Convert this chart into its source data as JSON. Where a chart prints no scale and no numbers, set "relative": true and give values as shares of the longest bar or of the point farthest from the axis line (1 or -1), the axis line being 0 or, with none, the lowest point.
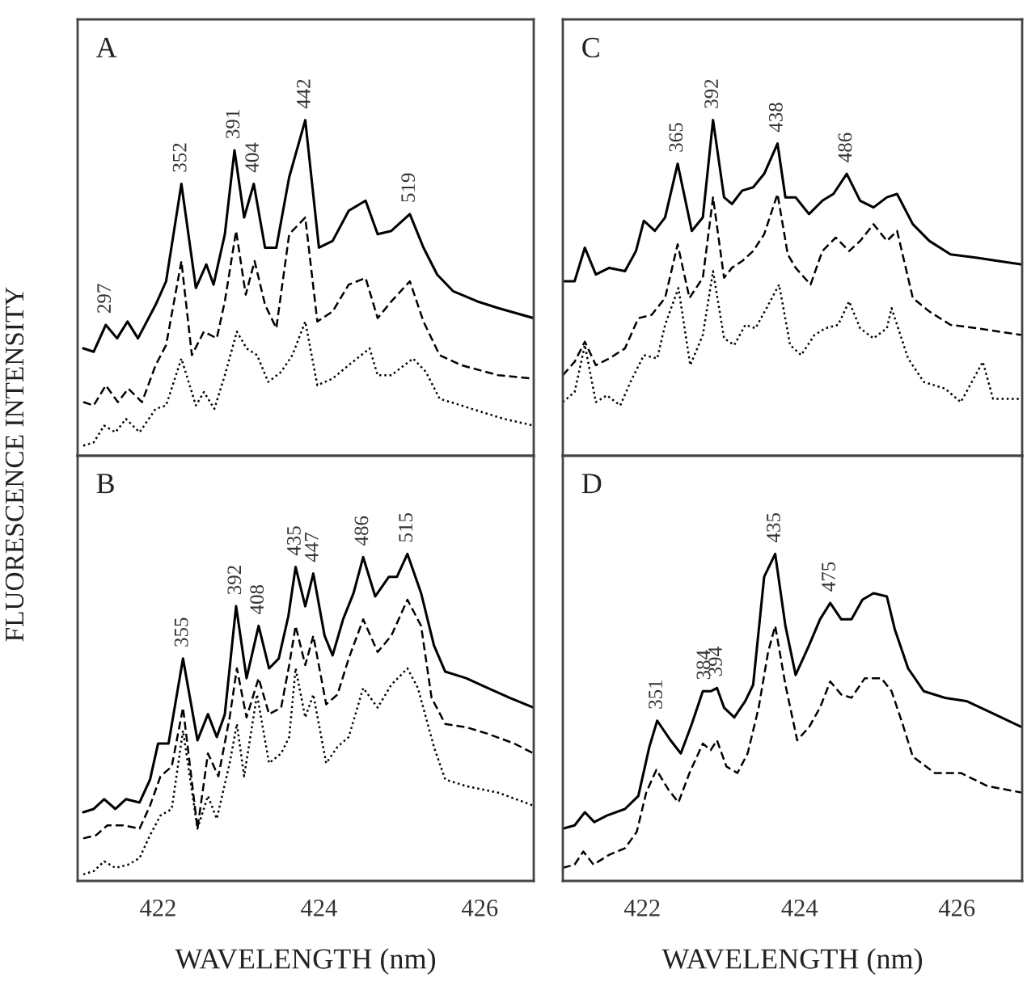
{
  "chart_data": [
    {
      "type": "line",
      "relative": true,
      "xlim": [
        421.0,
        426.67
      ],
      "xticks": [
        422,
        424,
        426
      ],
      "tick_labels": false,
      "annotations": [
        "A",
        {
          "text": "297",
          "x": 421.35,
          "y": 0.39
        },
        {
          "text": "352",
          "x": 422.29,
          "y": 0.81
        },
        {
          "text": "391",
          "x": 422.95,
          "y": 0.91
        },
        {
          "text": "404",
          "x": 423.19,
          "y": 0.81
        },
        {
          "text": "442",
          "x": 423.83,
          "y": 1.0
        },
        {
          "text": "519",
          "x": 425.13,
          "y": 0.72
        }
      ],
      "series": [
        {
          "color": "#000000",
          "line_style": "solid",
          "x": [
            421.07,
            421.2,
            421.35,
            421.49,
            421.62,
            421.75,
            421.97,
            422.1,
            422.29,
            422.47,
            422.6,
            422.69,
            422.83,
            422.95,
            423.07,
            423.19,
            423.33,
            423.47,
            423.63,
            423.83,
            424.0,
            424.17,
            424.37,
            424.58,
            424.73,
            424.9,
            425.13,
            425.3,
            425.47,
            425.67,
            425.97,
            426.23,
            426.67
          ],
          "values": [
            0.32,
            0.31,
            0.39,
            0.35,
            0.4,
            0.35,
            0.45,
            0.52,
            0.81,
            0.5,
            0.57,
            0.51,
            0.66,
            0.91,
            0.71,
            0.81,
            0.62,
            0.62,
            0.83,
            1.0,
            0.62,
            0.64,
            0.73,
            0.76,
            0.66,
            0.67,
            0.72,
            0.62,
            0.54,
            0.49,
            0.46,
            0.44,
            0.41
          ]
        },
        {
          "color": "#000000",
          "line_style": "dashed",
          "x": [
            421.07,
            421.2,
            421.35,
            421.5,
            421.63,
            421.8,
            421.97,
            422.1,
            422.29,
            422.42,
            422.57,
            422.73,
            422.83,
            422.97,
            423.09,
            423.2,
            423.33,
            423.47,
            423.63,
            423.83,
            423.98,
            424.17,
            424.37,
            424.58,
            424.73,
            424.9,
            425.13,
            425.3,
            425.5,
            425.77,
            426.23,
            426.67
          ],
          "values": [
            0.16,
            0.15,
            0.21,
            0.16,
            0.2,
            0.16,
            0.27,
            0.33,
            0.58,
            0.3,
            0.37,
            0.35,
            0.46,
            0.67,
            0.48,
            0.58,
            0.45,
            0.38,
            0.66,
            0.71,
            0.4,
            0.43,
            0.51,
            0.53,
            0.41,
            0.46,
            0.52,
            0.4,
            0.3,
            0.27,
            0.24,
            0.23
          ]
        },
        {
          "color": "#000000",
          "line_style": "dotted",
          "x": [
            421.07,
            421.2,
            421.33,
            421.47,
            421.6,
            421.77,
            421.97,
            422.1,
            422.29,
            422.47,
            422.57,
            422.7,
            422.83,
            422.98,
            423.1,
            423.23,
            423.37,
            423.53,
            423.67,
            423.83,
            423.98,
            424.17,
            424.37,
            424.63,
            424.73,
            424.9,
            425.17,
            425.33,
            425.5,
            425.77,
            426.03,
            426.3,
            426.67
          ],
          "values": [
            0.03,
            0.04,
            0.09,
            0.07,
            0.11,
            0.07,
            0.14,
            0.15,
            0.29,
            0.15,
            0.19,
            0.14,
            0.24,
            0.37,
            0.32,
            0.3,
            0.22,
            0.25,
            0.3,
            0.4,
            0.21,
            0.23,
            0.27,
            0.32,
            0.24,
            0.24,
            0.29,
            0.25,
            0.17,
            0.15,
            0.13,
            0.11,
            0.09
          ]
        }
      ]
    },
    {
      "type": "line",
      "relative": true,
      "ylabel": "FLUORESCENCE INTENSITY",
      "xlabel": "WAVELENGTH (nm)",
      "xlim": [
        421.0,
        426.67
      ],
      "xticks": [
        422,
        424,
        426
      ],
      "tick_labels": "x",
      "annotations": [
        "B",
        {
          "text": "355",
          "x": 422.31,
          "y": 0.68
        },
        {
          "text": "392",
          "x": 422.97,
          "y": 0.84
        },
        {
          "text": "408",
          "x": 423.25,
          "y": 0.78
        },
        {
          "text": "435",
          "x": 423.71,
          "y": 0.96
        },
        {
          "text": "447",
          "x": 423.93,
          "y": 0.94
        },
        {
          "text": "486",
          "x": 424.55,
          "y": 0.99
        },
        {
          "text": "515",
          "x": 425.1,
          "y": 1.0
        }
      ],
      "series": [
        {
          "color": "#000000",
          "line_style": "solid",
          "x": [
            421.07,
            421.2,
            421.33,
            421.47,
            421.6,
            421.77,
            421.9,
            422.0,
            422.13,
            422.31,
            422.49,
            422.62,
            422.73,
            422.83,
            422.97,
            423.1,
            423.25,
            423.38,
            423.5,
            423.62,
            423.71,
            423.83,
            423.93,
            424.07,
            424.17,
            424.3,
            424.43,
            424.55,
            424.7,
            424.87,
            424.97,
            425.1,
            425.27,
            425.43,
            425.57,
            425.83,
            426.1,
            426.37,
            426.67
          ],
          "values": [
            0.21,
            0.22,
            0.25,
            0.22,
            0.25,
            0.24,
            0.31,
            0.42,
            0.42,
            0.68,
            0.43,
            0.51,
            0.44,
            0.51,
            0.84,
            0.62,
            0.78,
            0.65,
            0.68,
            0.81,
            0.96,
            0.84,
            0.94,
            0.75,
            0.69,
            0.8,
            0.88,
            0.99,
            0.87,
            0.93,
            0.93,
            1.0,
            0.88,
            0.72,
            0.64,
            0.62,
            0.59,
            0.56,
            0.53
          ]
        },
        {
          "color": "#000000",
          "line_style": "dashed",
          "x": [
            421.07,
            421.23,
            421.37,
            421.57,
            421.77,
            421.9,
            422.03,
            422.17,
            422.31,
            422.49,
            422.62,
            422.75,
            422.89,
            422.98,
            423.1,
            423.25,
            423.38,
            423.53,
            423.63,
            423.71,
            423.83,
            423.93,
            424.09,
            424.23,
            424.37,
            424.55,
            424.73,
            424.9,
            425.1,
            425.27,
            425.4,
            425.57,
            425.83,
            426.1,
            426.43,
            426.67
          ],
          "values": [
            0.13,
            0.14,
            0.17,
            0.17,
            0.16,
            0.23,
            0.32,
            0.35,
            0.53,
            0.16,
            0.39,
            0.32,
            0.5,
            0.65,
            0.5,
            0.62,
            0.51,
            0.53,
            0.66,
            0.78,
            0.66,
            0.75,
            0.54,
            0.57,
            0.68,
            0.8,
            0.7,
            0.75,
            0.86,
            0.78,
            0.56,
            0.48,
            0.47,
            0.45,
            0.42,
            0.39
          ]
        },
        {
          "color": "#000000",
          "line_style": "dotted",
          "x": [
            421.07,
            421.2,
            421.33,
            421.47,
            421.63,
            421.77,
            421.9,
            422.03,
            422.17,
            422.31,
            422.49,
            422.62,
            422.73,
            422.89,
            422.98,
            423.07,
            423.23,
            423.38,
            423.53,
            423.63,
            423.71,
            423.83,
            423.93,
            424.09,
            424.23,
            424.37,
            424.55,
            424.73,
            424.9,
            425.1,
            425.23,
            425.43,
            425.57,
            425.83,
            426.23,
            426.67
          ],
          "values": [
            0.02,
            0.03,
            0.06,
            0.04,
            0.05,
            0.07,
            0.14,
            0.2,
            0.22,
            0.46,
            0.16,
            0.26,
            0.19,
            0.36,
            0.48,
            0.32,
            0.57,
            0.36,
            0.39,
            0.44,
            0.65,
            0.5,
            0.57,
            0.36,
            0.41,
            0.44,
            0.59,
            0.53,
            0.6,
            0.65,
            0.59,
            0.41,
            0.31,
            0.29,
            0.27,
            0.23
          ]
        }
      ]
    },
    {
      "type": "line",
      "relative": true,
      "xlim": [
        420.99,
        426.83
      ],
      "xticks": [
        422,
        424,
        426
      ],
      "tick_labels": false,
      "annotations": [
        "C",
        {
          "text": "365",
          "x": 422.45,
          "y": 0.87
        },
        {
          "text": "392",
          "x": 422.9,
          "y": 1.0
        },
        {
          "text": "438",
          "x": 423.72,
          "y": 0.93
        },
        {
          "text": "486",
          "x": 424.6,
          "y": 0.84
        }
      ],
      "series": [
        {
          "color": "#000000",
          "line_style": "solid",
          "x": [
            420.99,
            421.14,
            421.27,
            421.41,
            421.58,
            421.78,
            421.92,
            422.02,
            422.16,
            422.29,
            422.45,
            422.63,
            422.77,
            422.9,
            423.04,
            423.14,
            423.27,
            423.41,
            423.55,
            423.72,
            423.82,
            423.95,
            424.12,
            424.29,
            424.43,
            424.6,
            424.77,
            424.94,
            425.11,
            425.24,
            425.44,
            425.65,
            425.92,
            426.26,
            426.53,
            426.83
          ],
          "values": [
            0.52,
            0.52,
            0.62,
            0.54,
            0.56,
            0.55,
            0.61,
            0.7,
            0.67,
            0.71,
            0.87,
            0.67,
            0.71,
            1.0,
            0.77,
            0.75,
            0.79,
            0.8,
            0.84,
            0.93,
            0.77,
            0.77,
            0.72,
            0.76,
            0.78,
            0.84,
            0.76,
            0.74,
            0.77,
            0.78,
            0.69,
            0.64,
            0.6,
            0.59,
            0.58,
            0.57
          ]
        },
        {
          "color": "#000000",
          "line_style": "dashed",
          "x": [
            420.99,
            421.14,
            421.27,
            421.41,
            421.58,
            421.78,
            421.95,
            422.12,
            422.29,
            422.45,
            422.6,
            422.77,
            422.9,
            423.04,
            423.14,
            423.27,
            423.41,
            423.55,
            423.72,
            423.85,
            423.95,
            424.14,
            424.29,
            424.46,
            424.63,
            424.77,
            424.94,
            425.11,
            425.24,
            425.44,
            425.65,
            425.92,
            426.26,
            426.53,
            426.83
          ],
          "values": [
            0.24,
            0.28,
            0.34,
            0.27,
            0.29,
            0.32,
            0.41,
            0.42,
            0.47,
            0.63,
            0.47,
            0.53,
            0.77,
            0.53,
            0.56,
            0.58,
            0.61,
            0.66,
            0.78,
            0.6,
            0.56,
            0.51,
            0.61,
            0.65,
            0.61,
            0.64,
            0.69,
            0.64,
            0.67,
            0.47,
            0.43,
            0.39,
            0.38,
            0.37,
            0.36
          ]
        },
        {
          "color": "#000000",
          "line_style": "dotted",
          "x": [
            420.99,
            421.14,
            421.27,
            421.41,
            421.55,
            421.72,
            421.85,
            422.02,
            422.19,
            422.29,
            422.46,
            422.61,
            422.77,
            422.9,
            423.04,
            423.17,
            423.31,
            423.44,
            423.58,
            423.74,
            423.88,
            424.02,
            424.19,
            424.33,
            424.49,
            424.63,
            424.77,
            424.94,
            425.11,
            425.17,
            425.38,
            425.58,
            425.85,
            426.05,
            426.33,
            426.46,
            426.83
          ],
          "values": [
            0.16,
            0.19,
            0.33,
            0.16,
            0.18,
            0.15,
            0.22,
            0.3,
            0.29,
            0.39,
            0.5,
            0.27,
            0.36,
            0.55,
            0.35,
            0.33,
            0.39,
            0.38,
            0.44,
            0.51,
            0.33,
            0.3,
            0.36,
            0.38,
            0.39,
            0.46,
            0.38,
            0.35,
            0.38,
            0.44,
            0.29,
            0.22,
            0.2,
            0.16,
            0.28,
            0.17,
            0.17
          ]
        }
      ]
    },
    {
      "type": "line",
      "relative": true,
      "xlabel": "WAVELENGTH (nm)",
      "xlim": [
        420.99,
        426.83
      ],
      "xticks": [
        422,
        424,
        426
      ],
      "tick_labels": "x",
      "annotations": [
        "D",
        {
          "text": "351",
          "x": 422.19,
          "y": 0.49
        },
        {
          "text": "384",
          "x": 422.8,
          "y": 0.58
        },
        {
          "text": "394",
          "x": 422.95,
          "y": 0.59
        },
        {
          "text": "435",
          "x": 423.69,
          "y": 1.0
        },
        {
          "text": "475",
          "x": 424.39,
          "y": 0.85
        }
      ],
      "series": [
        {
          "color": "#000000",
          "line_style": "solid",
          "x": [
            420.99,
            421.14,
            421.27,
            421.39,
            421.55,
            421.78,
            421.95,
            422.09,
            422.19,
            422.36,
            422.49,
            422.63,
            422.77,
            422.87,
            422.95,
            423.04,
            423.17,
            423.31,
            423.41,
            423.55,
            423.69,
            423.82,
            423.95,
            424.12,
            424.26,
            424.39,
            424.53,
            424.66,
            424.8,
            424.94,
            425.11,
            425.21,
            425.38,
            425.58,
            425.85,
            426.12,
            426.39,
            426.83
          ],
          "values": [
            0.16,
            0.17,
            0.21,
            0.18,
            0.2,
            0.22,
            0.26,
            0.41,
            0.49,
            0.43,
            0.39,
            0.48,
            0.58,
            0.58,
            0.59,
            0.53,
            0.5,
            0.55,
            0.6,
            0.93,
            1.0,
            0.78,
            0.63,
            0.72,
            0.8,
            0.85,
            0.8,
            0.8,
            0.86,
            0.88,
            0.87,
            0.77,
            0.65,
            0.58,
            0.56,
            0.55,
            0.52,
            0.47
          ]
        },
        {
          "color": "#000000",
          "line_style": "dashed",
          "x": [
            420.99,
            421.14,
            421.25,
            421.38,
            421.58,
            421.78,
            421.93,
            422.05,
            422.18,
            422.33,
            422.46,
            422.6,
            422.77,
            422.87,
            422.95,
            423.07,
            423.21,
            423.34,
            423.48,
            423.6,
            423.69,
            423.82,
            423.97,
            424.12,
            424.26,
            424.39,
            424.53,
            424.66,
            424.83,
            425.04,
            425.17,
            425.31,
            425.44,
            425.72,
            426.05,
            426.39,
            426.83
          ],
          "values": [
            0.04,
            0.05,
            0.09,
            0.05,
            0.08,
            0.1,
            0.15,
            0.27,
            0.34,
            0.28,
            0.24,
            0.33,
            0.42,
            0.4,
            0.43,
            0.35,
            0.33,
            0.39,
            0.53,
            0.7,
            0.78,
            0.6,
            0.43,
            0.47,
            0.53,
            0.61,
            0.57,
            0.56,
            0.62,
            0.62,
            0.58,
            0.48,
            0.38,
            0.33,
            0.33,
            0.29,
            0.27
          ]
        }
      ]
    }
  ]
}
